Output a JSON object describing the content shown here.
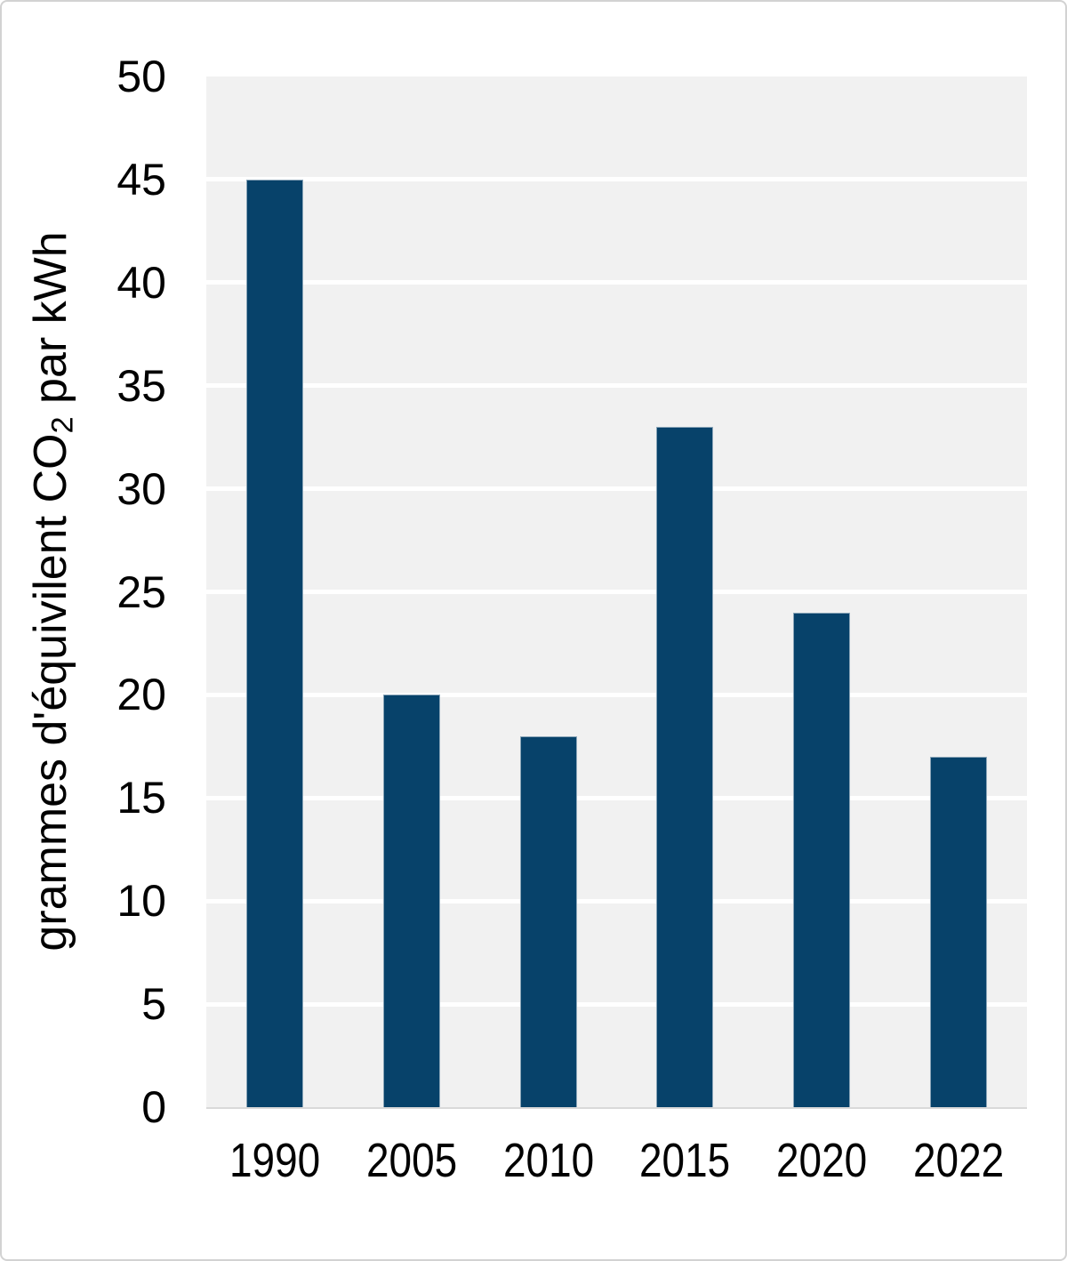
{
  "page": {
    "background_color": "#ffffff",
    "border_color": "#d2d2d2",
    "text_color": "#000000"
  },
  "chart_data": {
    "type": "bar",
    "categories": [
      "1990",
      "2005",
      "2010",
      "2015",
      "2020",
      "2022"
    ],
    "values": [
      45,
      20,
      18,
      33,
      24,
      17
    ],
    "title": "",
    "xlabel": "",
    "ylabel": "grammes d'équivilent CO2 par kWh",
    "ylabel_parts": {
      "prefix": "grammes d'équivilent CO",
      "sub": "2",
      "suffix": " par kWh"
    },
    "ylim": [
      0,
      50
    ],
    "yticks": [
      0,
      5,
      10,
      15,
      20,
      25,
      30,
      35,
      40,
      45,
      50
    ],
    "grid": true,
    "legend": false,
    "gridline_on": "horizontal white bands on light gray plot background",
    "bar_color": "#07426a",
    "bar_border_color": "#8aa5b8",
    "plot_background_color": "#f1f1f1",
    "gridline_color": "#ffffff",
    "axis_line_color": "#d9d9d9"
  }
}
